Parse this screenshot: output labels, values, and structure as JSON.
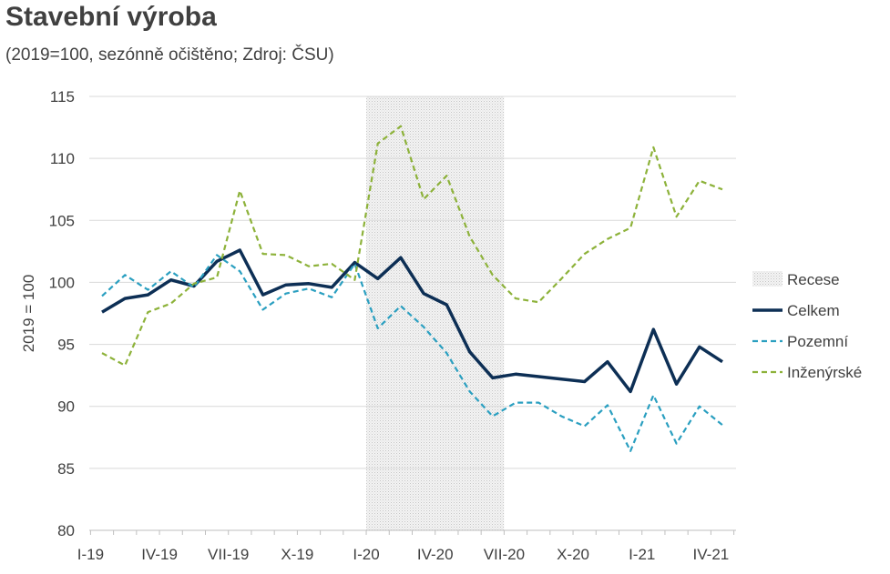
{
  "chart_data": {
    "type": "line",
    "title": "Stavební výroba",
    "subtitle": "(2019=100, sezónně očištěno; Zdroj: ČSU)",
    "ylabel": "2019 = 100",
    "xlabel": "",
    "ylim": [
      80,
      115
    ],
    "yticks": [
      80,
      85,
      90,
      95,
      100,
      105,
      110,
      115
    ],
    "x": [
      "I-19",
      "II-19",
      "III-19",
      "IV-19",
      "V-19",
      "VI-19",
      "VII-19",
      "VIII-19",
      "IX-19",
      "X-19",
      "XI-19",
      "XII-19",
      "I-20",
      "II-20",
      "III-20",
      "IV-20",
      "V-20",
      "VI-20",
      "VII-20",
      "VIII-20",
      "IX-20",
      "X-20",
      "XI-20",
      "XII-20",
      "I-21",
      "II-21",
      "III-21",
      "IV-21"
    ],
    "xtick_labels": [
      "I-19",
      "IV-19",
      "VII-19",
      "X-19",
      "I-20",
      "IV-20",
      "VII-20",
      "X-20",
      "I-21",
      "IV-21"
    ],
    "recession": {
      "name": "Recese",
      "start": "I-20",
      "end": "VII-20"
    },
    "series": [
      {
        "name": "Celkem",
        "color": "#0d2f55",
        "style": "solid",
        "values": [
          97.6,
          98.7,
          99.0,
          100.2,
          99.7,
          101.7,
          102.6,
          99.0,
          99.8,
          99.9,
          99.6,
          101.6,
          100.3,
          102.0,
          99.1,
          98.2,
          94.4,
          92.3,
          92.6,
          92.4,
          92.2,
          92.0,
          93.6,
          91.2,
          96.2,
          91.8,
          94.8,
          93.6
        ]
      },
      {
        "name": "Pozemní",
        "color": "#2a9fc0",
        "style": "dashed",
        "values": [
          98.9,
          100.6,
          99.4,
          100.9,
          99.6,
          102.2,
          100.9,
          97.8,
          99.1,
          99.5,
          98.8,
          101.5,
          96.3,
          98.1,
          96.4,
          94.3,
          91.2,
          89.2,
          90.3,
          90.3,
          89.2,
          88.4,
          90.1,
          86.4,
          90.9,
          87.0,
          90.0,
          88.5
        ]
      },
      {
        "name": "Inženýrské",
        "color": "#8db23a",
        "style": "dashed",
        "values": [
          94.3,
          93.3,
          97.6,
          98.3,
          99.9,
          100.4,
          107.4,
          102.3,
          102.2,
          101.3,
          101.5,
          100.2,
          111.2,
          112.6,
          106.7,
          108.6,
          103.7,
          100.6,
          98.7,
          98.4,
          100.3,
          102.3,
          103.5,
          104.4,
          110.9,
          105.3,
          108.2,
          107.5
        ]
      }
    ],
    "legend_position": "right"
  }
}
